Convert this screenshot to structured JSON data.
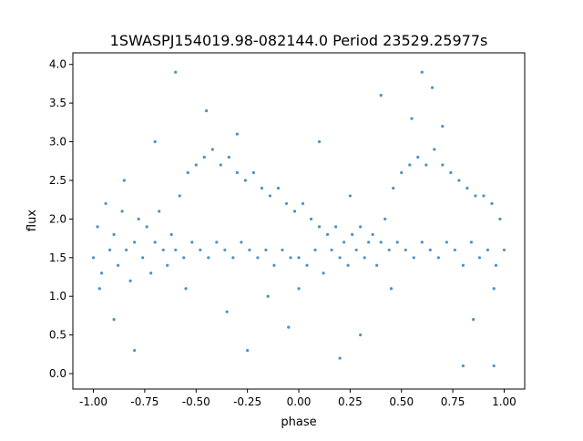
{
  "chart_data": {
    "type": "scatter",
    "title": "1SWASPJ154019.98-082144.0 Period 23529.25977s",
    "xlabel": "phase",
    "ylabel": "flux",
    "xlim": [
      -1.1,
      1.1
    ],
    "ylim": [
      -0.2,
      4.15
    ],
    "xticks": [
      "-1.00",
      "-0.75",
      "-0.50",
      "-0.25",
      "0.00",
      "0.25",
      "0.50",
      "0.75",
      "1.00"
    ],
    "xtick_values": [
      -1,
      -0.75,
      -0.5,
      -0.25,
      0,
      0.25,
      0.5,
      0.75,
      1
    ],
    "yticks": [
      "0.0",
      "0.5",
      "1.0",
      "1.5",
      "2.0",
      "2.5",
      "3.0",
      "3.5",
      "4.0"
    ],
    "ytick_values": [
      0,
      0.5,
      1,
      1.5,
      2,
      2.5,
      3,
      3.5,
      4
    ],
    "grid": false,
    "marker_color": "#1f77b4",
    "points": [
      [
        -1.0,
        1.5
      ],
      [
        -0.98,
        1.9
      ],
      [
        -0.96,
        1.3
      ],
      [
        -0.94,
        2.2
      ],
      [
        -0.92,
        1.6
      ],
      [
        -0.9,
        1.8
      ],
      [
        -0.88,
        1.4
      ],
      [
        -0.86,
        2.1
      ],
      [
        -0.84,
        1.6
      ],
      [
        -0.82,
        1.2
      ],
      [
        -0.8,
        1.7
      ],
      [
        -0.78,
        2.0
      ],
      [
        -0.76,
        1.5
      ],
      [
        -0.74,
        1.9
      ],
      [
        -0.72,
        1.3
      ],
      [
        -0.7,
        1.7
      ],
      [
        -0.68,
        2.1
      ],
      [
        -0.66,
        1.6
      ],
      [
        -0.64,
        1.4
      ],
      [
        -0.62,
        1.8
      ],
      [
        -0.6,
        1.6
      ],
      [
        -0.58,
        2.3
      ],
      [
        -0.56,
        1.5
      ],
      [
        -0.54,
        2.6
      ],
      [
        -0.52,
        1.7
      ],
      [
        -0.5,
        2.7
      ],
      [
        -0.48,
        1.6
      ],
      [
        -0.46,
        2.8
      ],
      [
        -0.44,
        1.5
      ],
      [
        -0.42,
        2.9
      ],
      [
        -0.4,
        1.7
      ],
      [
        -0.38,
        2.7
      ],
      [
        -0.36,
        1.6
      ],
      [
        -0.34,
        2.8
      ],
      [
        -0.32,
        1.5
      ],
      [
        -0.3,
        2.6
      ],
      [
        -0.28,
        1.7
      ],
      [
        -0.26,
        2.5
      ],
      [
        -0.24,
        1.6
      ],
      [
        -0.22,
        2.6
      ],
      [
        -0.2,
        1.5
      ],
      [
        -0.18,
        2.4
      ],
      [
        -0.16,
        1.6
      ],
      [
        -0.14,
        2.3
      ],
      [
        -0.12,
        1.4
      ],
      [
        -0.1,
        2.4
      ],
      [
        -0.08,
        1.6
      ],
      [
        -0.06,
        2.2
      ],
      [
        -0.04,
        1.5
      ],
      [
        -0.02,
        2.1
      ],
      [
        0.0,
        1.5
      ],
      [
        0.02,
        2.2
      ],
      [
        0.04,
        1.4
      ],
      [
        0.06,
        2.0
      ],
      [
        0.08,
        1.6
      ],
      [
        0.1,
        1.9
      ],
      [
        0.12,
        1.3
      ],
      [
        0.14,
        1.8
      ],
      [
        0.16,
        1.6
      ],
      [
        0.18,
        1.9
      ],
      [
        0.2,
        1.5
      ],
      [
        0.22,
        1.7
      ],
      [
        0.24,
        1.4
      ],
      [
        0.26,
        1.8
      ],
      [
        0.28,
        1.6
      ],
      [
        0.3,
        1.9
      ],
      [
        0.32,
        1.5
      ],
      [
        0.34,
        1.7
      ],
      [
        0.36,
        1.8
      ],
      [
        0.38,
        1.4
      ],
      [
        0.4,
        1.7
      ],
      [
        0.42,
        2.0
      ],
      [
        0.44,
        1.6
      ],
      [
        0.46,
        2.4
      ],
      [
        0.48,
        1.7
      ],
      [
        0.5,
        2.6
      ],
      [
        0.52,
        1.6
      ],
      [
        0.54,
        2.7
      ],
      [
        0.56,
        1.5
      ],
      [
        0.58,
        2.8
      ],
      [
        0.6,
        1.7
      ],
      [
        0.62,
        2.7
      ],
      [
        0.64,
        1.6
      ],
      [
        0.66,
        2.9
      ],
      [
        0.68,
        1.5
      ],
      [
        0.7,
        2.7
      ],
      [
        0.72,
        1.7
      ],
      [
        0.74,
        2.6
      ],
      [
        0.76,
        1.6
      ],
      [
        0.78,
        2.5
      ],
      [
        0.8,
        1.4
      ],
      [
        0.82,
        2.4
      ],
      [
        0.84,
        1.7
      ],
      [
        0.86,
        2.3
      ],
      [
        0.88,
        1.5
      ],
      [
        0.9,
        2.3
      ],
      [
        0.92,
        1.6
      ],
      [
        0.94,
        2.2
      ],
      [
        0.96,
        1.4
      ],
      [
        0.98,
        2.0
      ],
      [
        1.0,
        1.6
      ],
      [
        -0.9,
        0.7
      ],
      [
        -0.7,
        3.0
      ],
      [
        -0.45,
        3.4
      ],
      [
        -0.35,
        0.8
      ],
      [
        -0.05,
        0.6
      ],
      [
        0.1,
        3.0
      ],
      [
        0.3,
        0.5
      ],
      [
        0.55,
        3.3
      ],
      [
        0.65,
        3.7
      ],
      [
        0.85,
        0.7
      ],
      [
        -0.97,
        1.1
      ],
      [
        -0.55,
        1.1
      ],
      [
        0.0,
        1.1
      ],
      [
        0.45,
        1.1
      ],
      [
        0.95,
        1.1
      ],
      [
        -0.3,
        3.1
      ],
      [
        0.7,
        3.2
      ],
      [
        -0.8,
        0.3
      ],
      [
        0.2,
        0.2
      ],
      [
        0.95,
        0.1
      ],
      [
        -0.6,
        3.9
      ],
      [
        0.6,
        3.9
      ],
      [
        -0.85,
        2.5
      ],
      [
        0.25,
        2.3
      ],
      [
        -0.15,
        1.0
      ],
      [
        0.4,
        3.6
      ],
      [
        -0.25,
        0.3
      ],
      [
        0.8,
        0.1
      ]
    ]
  }
}
